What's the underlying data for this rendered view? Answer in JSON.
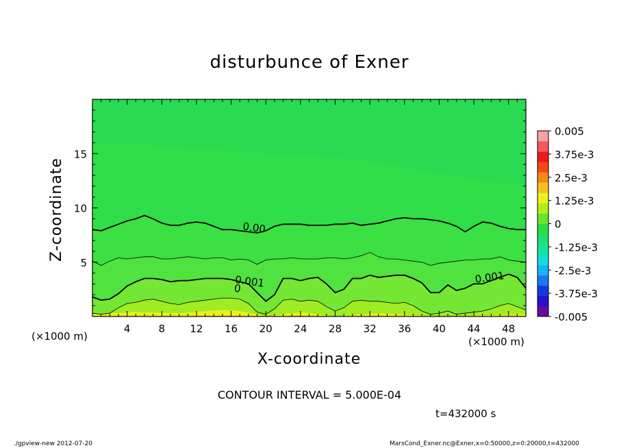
{
  "chart_data": {
    "type": "contour",
    "title": "disturbunce of Exner",
    "xlabel": "X-coordinate",
    "ylabel": "Z-coordinate",
    "x_unit": "(×1000 m)",
    "y_unit": "(×1000 m)",
    "xlim": [
      0,
      50
    ],
    "ylim": [
      0,
      20
    ],
    "x_ticks": [
      4,
      8,
      12,
      16,
      20,
      24,
      28,
      32,
      36,
      40,
      44,
      48
    ],
    "y_ticks": [
      5,
      10,
      15
    ],
    "grid": false,
    "colorbar": {
      "placement": "right",
      "ticks": [
        "0.005",
        "3.75e-3",
        "2.5e-3",
        "1.25e-3",
        "0",
        "-1.25e-3",
        "-2.5e-3",
        "-3.75e-3",
        "-0.005"
      ],
      "levels_min": -0.005,
      "levels_max": 0.005,
      "level_step": 0.0005
    },
    "contour_labels": [
      {
        "text": "0.00",
        "x": 17.3,
        "z": 8.0
      },
      {
        "text": "0.001",
        "x": 16.4,
        "z": 3.1
      },
      {
        "text": "0",
        "x": 16.3,
        "z": 2.3
      },
      {
        "text": "0.001",
        "x": 44.2,
        "z": 3.1
      }
    ],
    "contour_lines": [
      {
        "level": "0.00",
        "weight": "bold",
        "points": [
          [
            0,
            8.0
          ],
          [
            1,
            7.9
          ],
          [
            2,
            8.2
          ],
          [
            3,
            8.5
          ],
          [
            4,
            8.8
          ],
          [
            5,
            9.0
          ],
          [
            6,
            9.3
          ],
          [
            7,
            9.0
          ],
          [
            8,
            8.6
          ],
          [
            9,
            8.4
          ],
          [
            10,
            8.4
          ],
          [
            11,
            8.6
          ],
          [
            12,
            8.7
          ],
          [
            13,
            8.6
          ],
          [
            14,
            8.3
          ],
          [
            15,
            8.0
          ],
          [
            16,
            8.0
          ],
          [
            17,
            7.9
          ],
          [
            18,
            7.8
          ],
          [
            19,
            7.7
          ],
          [
            20,
            7.9
          ],
          [
            21,
            8.3
          ],
          [
            22,
            8.5
          ],
          [
            23,
            8.5
          ],
          [
            24,
            8.5
          ],
          [
            25,
            8.4
          ],
          [
            26,
            8.4
          ],
          [
            27,
            8.4
          ],
          [
            28,
            8.5
          ],
          [
            29,
            8.5
          ],
          [
            30,
            8.6
          ],
          [
            31,
            8.4
          ],
          [
            32,
            8.5
          ],
          [
            33,
            8.6
          ],
          [
            34,
            8.8
          ],
          [
            35,
            9.0
          ],
          [
            36,
            9.1
          ],
          [
            37,
            9.0
          ],
          [
            38,
            9.0
          ],
          [
            39,
            8.9
          ],
          [
            40,
            8.8
          ],
          [
            41,
            8.6
          ],
          [
            42,
            8.3
          ],
          [
            43,
            7.8
          ],
          [
            44,
            8.3
          ],
          [
            45,
            8.7
          ],
          [
            46,
            8.6
          ],
          [
            47,
            8.3
          ],
          [
            48,
            8.1
          ],
          [
            49,
            8.0
          ],
          [
            50,
            8.0
          ]
        ]
      },
      {
        "level": "0.0005",
        "weight": "thin",
        "points": [
          [
            0,
            5.1
          ],
          [
            1,
            4.7
          ],
          [
            2,
            5.1
          ],
          [
            3,
            5.4
          ],
          [
            4,
            5.3
          ],
          [
            5,
            5.4
          ],
          [
            6,
            5.5
          ],
          [
            7,
            5.5
          ],
          [
            8,
            5.3
          ],
          [
            9,
            5.3
          ],
          [
            10,
            5.4
          ],
          [
            11,
            5.5
          ],
          [
            12,
            5.4
          ],
          [
            13,
            5.3
          ],
          [
            14,
            5.4
          ],
          [
            15,
            5.4
          ],
          [
            16,
            5.2
          ],
          [
            17,
            5.3
          ],
          [
            18,
            5.2
          ],
          [
            19,
            4.8
          ],
          [
            20,
            5.2
          ],
          [
            21,
            5.3
          ],
          [
            22,
            5.3
          ],
          [
            23,
            5.4
          ],
          [
            24,
            5.3
          ],
          [
            25,
            5.3
          ],
          [
            26,
            5.3
          ],
          [
            27,
            5.4
          ],
          [
            28,
            5.4
          ],
          [
            29,
            5.3
          ],
          [
            30,
            5.4
          ],
          [
            31,
            5.6
          ],
          [
            32,
            5.9
          ],
          [
            33,
            5.5
          ],
          [
            34,
            5.3
          ],
          [
            35,
            5.3
          ],
          [
            36,
            5.2
          ],
          [
            37,
            5.1
          ],
          [
            38,
            5.0
          ],
          [
            39,
            4.7
          ],
          [
            40,
            4.9
          ],
          [
            41,
            5.0
          ],
          [
            42,
            5.1
          ],
          [
            43,
            5.2
          ],
          [
            44,
            5.2
          ],
          [
            45,
            5.3
          ],
          [
            46,
            5.3
          ],
          [
            47,
            5.5
          ],
          [
            48,
            5.2
          ],
          [
            49,
            5.1
          ],
          [
            50,
            5.0
          ]
        ]
      },
      {
        "level": "0.001",
        "weight": "bold",
        "points": [
          [
            0,
            1.8
          ],
          [
            1,
            1.5
          ],
          [
            2,
            1.6
          ],
          [
            3,
            2.1
          ],
          [
            4,
            2.8
          ],
          [
            5,
            3.2
          ],
          [
            6,
            3.5
          ],
          [
            7,
            3.5
          ],
          [
            8,
            3.4
          ],
          [
            9,
            3.2
          ],
          [
            10,
            3.3
          ],
          [
            11,
            3.3
          ],
          [
            12,
            3.4
          ],
          [
            13,
            3.5
          ],
          [
            14,
            3.5
          ],
          [
            15,
            3.5
          ],
          [
            16,
            3.4
          ],
          [
            17,
            3.2
          ],
          [
            18,
            3.0
          ],
          [
            19,
            2.2
          ],
          [
            20,
            1.4
          ],
          [
            21,
            2.0
          ],
          [
            22,
            3.5
          ],
          [
            23,
            3.5
          ],
          [
            24,
            3.3
          ],
          [
            25,
            3.5
          ],
          [
            26,
            3.6
          ],
          [
            27,
            3.0
          ],
          [
            28,
            2.2
          ],
          [
            29,
            2.5
          ],
          [
            30,
            3.5
          ],
          [
            31,
            3.5
          ],
          [
            32,
            3.8
          ],
          [
            33,
            3.6
          ],
          [
            34,
            3.7
          ],
          [
            35,
            3.8
          ],
          [
            36,
            3.8
          ],
          [
            37,
            3.5
          ],
          [
            38,
            3.1
          ],
          [
            39,
            2.2
          ],
          [
            40,
            2.2
          ],
          [
            41,
            2.9
          ],
          [
            42,
            2.4
          ],
          [
            43,
            2.6
          ],
          [
            44,
            3.0
          ],
          [
            45,
            3.0
          ],
          [
            46,
            3.3
          ],
          [
            47,
            3.6
          ],
          [
            48,
            3.9
          ],
          [
            49,
            3.6
          ],
          [
            50,
            2.6
          ]
        ]
      },
      {
        "level": "0.0015",
        "weight": "thin",
        "points": [
          [
            0,
            0.3
          ],
          [
            1,
            0.2
          ],
          [
            2,
            0.3
          ],
          [
            3,
            0.8
          ],
          [
            4,
            1.2
          ],
          [
            5,
            1.3
          ],
          [
            6,
            1.5
          ],
          [
            7,
            1.6
          ],
          [
            8,
            1.4
          ],
          [
            9,
            1.2
          ],
          [
            10,
            1.1
          ],
          [
            11,
            1.3
          ],
          [
            12,
            1.4
          ],
          [
            13,
            1.5
          ],
          [
            14,
            1.6
          ],
          [
            15,
            1.7
          ],
          [
            16,
            1.7
          ],
          [
            17,
            1.6
          ],
          [
            18,
            1.2
          ],
          [
            19,
            0.4
          ],
          [
            20,
            0.2
          ],
          [
            21,
            0.7
          ],
          [
            22,
            1.5
          ],
          [
            23,
            1.6
          ],
          [
            24,
            1.4
          ],
          [
            25,
            1.5
          ],
          [
            26,
            1.4
          ],
          [
            27,
            0.9
          ],
          [
            28,
            0.5
          ],
          [
            29,
            0.8
          ],
          [
            30,
            1.4
          ],
          [
            31,
            1.5
          ],
          [
            32,
            1.4
          ],
          [
            33,
            1.4
          ],
          [
            34,
            1.3
          ],
          [
            35,
            1.2
          ],
          [
            36,
            1.3
          ],
          [
            37,
            1.0
          ],
          [
            38,
            0.5
          ],
          [
            39,
            0.2
          ],
          [
            40,
            0.3
          ],
          [
            41,
            0.5
          ],
          [
            42,
            0.2
          ],
          [
            43,
            0.3
          ],
          [
            44,
            0.4
          ],
          [
            45,
            0.5
          ],
          [
            46,
            0.7
          ],
          [
            47,
            1.0
          ],
          [
            48,
            1.2
          ],
          [
            49,
            0.9
          ],
          [
            50,
            0.6
          ]
        ]
      }
    ],
    "fill_bands": [
      {
        "level": "0.0025",
        "color": "#f2ee16",
        "points": [
          [
            0,
            0
          ],
          [
            50,
            0
          ]
        ],
        "top": [
          [
            0,
            0.2
          ],
          [
            5,
            0.4
          ],
          [
            10,
            0.3
          ],
          [
            15,
            0.6
          ],
          [
            17,
            0.5
          ],
          [
            20,
            0
          ],
          [
            24,
            0.4
          ],
          [
            28,
            0
          ],
          [
            33,
            0.3
          ],
          [
            40,
            0
          ],
          [
            50,
            0.2
          ]
        ]
      },
      {
        "level": "0.002",
        "color": "#cdee18"
      },
      {
        "level": "0.0015",
        "color": "#aaed1c"
      },
      {
        "level": "0.001",
        "color": "#7fe82a"
      },
      {
        "level": "0.0005",
        "color": "#58e23a"
      },
      {
        "level": "0",
        "color": "#36e046"
      },
      {
        "level": "-0.0005",
        "color": "#2add4e"
      },
      {
        "level": "-0.0010",
        "color": "#27da53"
      }
    ]
  },
  "annotations": {
    "contour_interval": "CONTOUR INTERVAL = 5.000E-04",
    "time": "t=432000 s",
    "footer_left": "./gpview-new   2012-07-20",
    "footer_right": "MarsCond_Exner.nc@Exner,x=0:50000,z=0:20000,t=432000"
  },
  "colorbar_colors": [
    "#6a0aa0",
    "#2a10c8",
    "#1438e6",
    "#1a78f0",
    "#16b4f4",
    "#14dcd8",
    "#14e4a0",
    "#1fe070",
    "#2edd40",
    "#6ae42c",
    "#b2ee1c",
    "#eef01c",
    "#f5c020",
    "#f58a18",
    "#f24a18",
    "#ee1a1a",
    "#f05a5a",
    "#f8a0a0"
  ]
}
